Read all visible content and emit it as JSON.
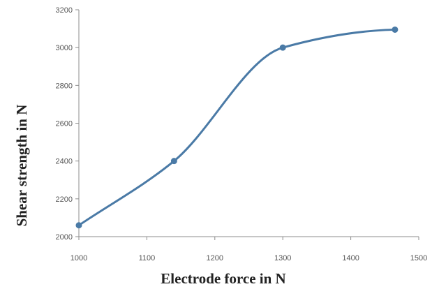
{
  "chart_data": {
    "type": "line",
    "title": "",
    "xlabel": "Electrode force in N",
    "ylabel": "Shear strength in N",
    "xlim": [
      1000,
      1500
    ],
    "ylim": [
      2000,
      3200
    ],
    "x_ticks": [
      "1000",
      "1100",
      "1200",
      "1300",
      "1400",
      "1500"
    ],
    "y_ticks": [
      "2000",
      "2200",
      "2400",
      "2600",
      "2800",
      "3000",
      "3200"
    ],
    "grid": false,
    "smooth": true,
    "line_color": "#4a7aa6",
    "series": [
      {
        "x": [
          1000,
          1140,
          1300,
          1465
        ],
        "y": [
          2060,
          2400,
          3000,
          3095
        ]
      }
    ]
  }
}
